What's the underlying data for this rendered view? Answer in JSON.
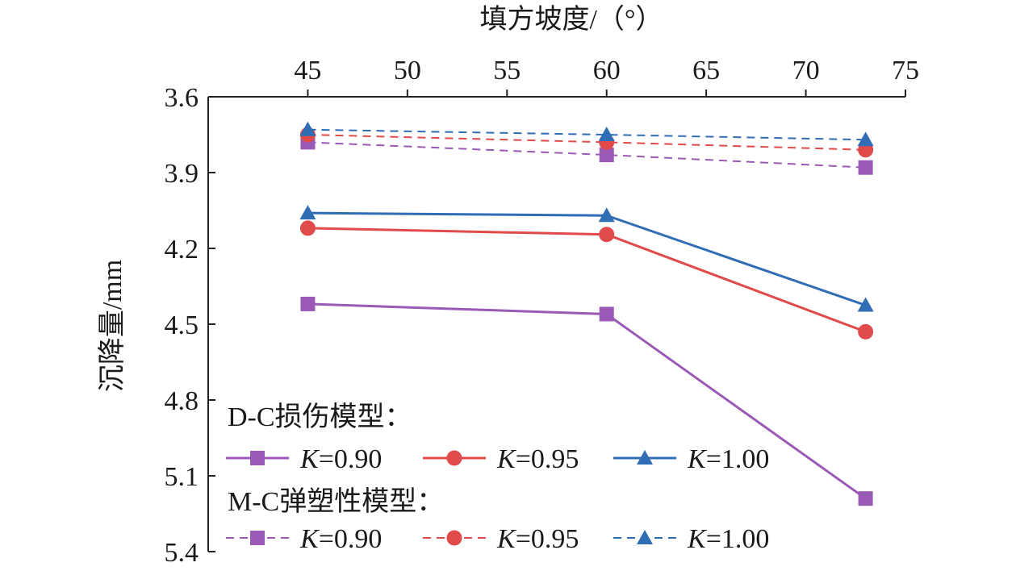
{
  "chart_data": {
    "type": "line",
    "xlabel": "填方坡度/（°）",
    "ylabel": "沉降量/mm",
    "xlim": [
      40,
      75
    ],
    "ylim": [
      3.6,
      5.4
    ],
    "y_inverted": true,
    "x_axis_position": "top",
    "xticks": [
      "45",
      "50",
      "55",
      "60",
      "65",
      "70",
      "75"
    ],
    "xtick_values": [
      45,
      50,
      55,
      60,
      65,
      70,
      75
    ],
    "yticks": [
      "3.6",
      "3.9",
      "4.2",
      "4.5",
      "4.8",
      "5.1",
      "5.4"
    ],
    "ytick_values": [
      3.6,
      3.9,
      4.2,
      4.5,
      4.8,
      5.1,
      5.4
    ],
    "grid": false,
    "legend_position": "bottom-left",
    "x": [
      45,
      60,
      73
    ],
    "legend_groups": [
      {
        "heading": "D-C损伤模型：",
        "style": "solid"
      },
      {
        "heading": "M-C弹塑性模型：",
        "style": "dashed"
      }
    ],
    "series": [
      {
        "group": 0,
        "k_var": "K",
        "k_val": "=0.90",
        "color": "#9b59b6",
        "marker": "square",
        "values": [
          4.42,
          4.46,
          5.19
        ]
      },
      {
        "group": 0,
        "k_var": "K",
        "k_val": "=0.95",
        "color": "#e04a4a",
        "marker": "circle",
        "values": [
          4.12,
          4.145,
          4.53
        ]
      },
      {
        "group": 0,
        "k_var": "K",
        "k_val": "=1.00",
        "color": "#2f6db5",
        "marker": "triangle",
        "values": [
          4.06,
          4.07,
          4.425
        ]
      },
      {
        "group": 1,
        "k_var": "K",
        "k_val": "=0.90",
        "color": "#9b59b6",
        "marker": "square",
        "values": [
          3.78,
          3.83,
          3.88
        ]
      },
      {
        "group": 1,
        "k_var": "K",
        "k_val": "=0.95",
        "color": "#e04a4a",
        "marker": "circle",
        "values": [
          3.75,
          3.78,
          3.81
        ]
      },
      {
        "group": 1,
        "k_var": "K",
        "k_val": "=1.00",
        "color": "#2f6db5",
        "marker": "triangle",
        "values": [
          3.73,
          3.75,
          3.77
        ]
      }
    ]
  }
}
